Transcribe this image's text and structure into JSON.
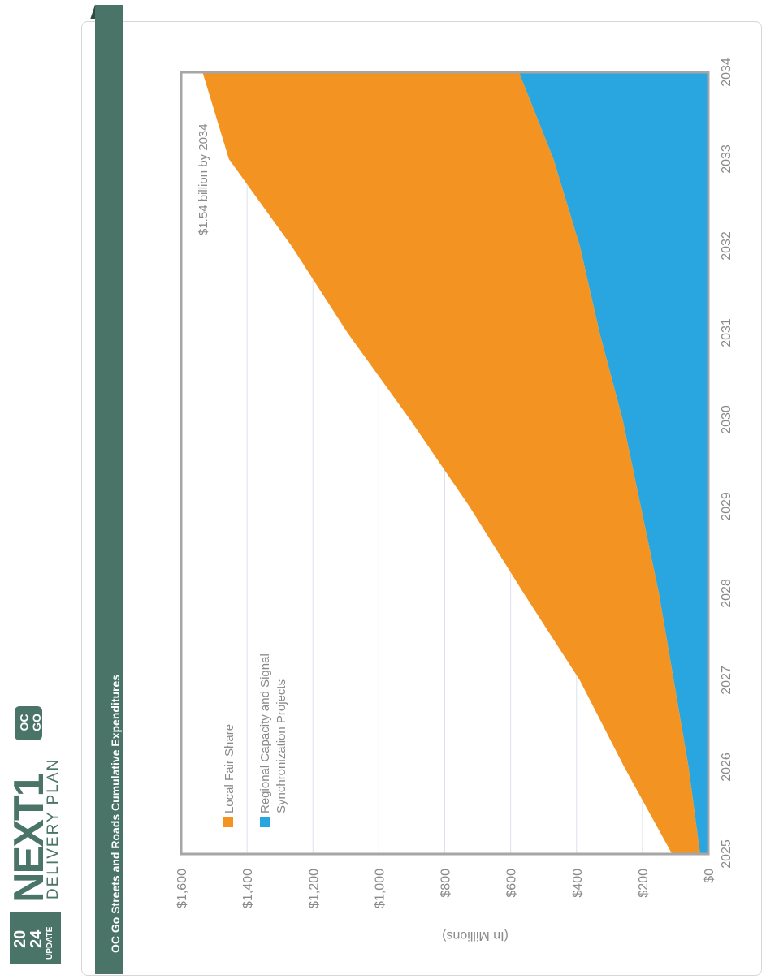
{
  "header": {
    "title": "OC Go Streets and Roads Cumulative Expenditures",
    "logo": {
      "year_top": "20",
      "year_bottom": "24",
      "update": "UPDATE",
      "brand": "NEXT1",
      "sub": "DELIVERY PLAN",
      "oc": "OC",
      "go": "GO"
    }
  },
  "colors": {
    "accent": "#4a7468",
    "local": "#f39322",
    "regional": "#29a6df",
    "axis": "#a6a6a6",
    "grid": "#dde0ee",
    "text": "#8a8a8a"
  },
  "chart_data": {
    "type": "area",
    "stacked": true,
    "title": "OC Go Streets and Roads Cumulative Expenditures",
    "ylabel": "(In Millions)",
    "xlabel": "",
    "x": [
      "2025",
      "2026",
      "2027",
      "2028",
      "2029",
      "2030",
      "2031",
      "2032",
      "2033",
      "2034"
    ],
    "ylim": [
      0,
      1600
    ],
    "yticks": [
      "$0",
      "$200",
      "$400",
      "$600",
      "$800",
      "$1,000",
      "$1,200",
      "$1,400",
      "$1,600"
    ],
    "series": [
      {
        "name": "Regional Capacity and Signal Synchronization Projects",
        "color": "#29a6df",
        "values": [
          25,
          60,
          105,
          150,
          205,
          260,
          330,
          390,
          470,
          575
        ]
      },
      {
        "name": "Local Fair Share",
        "color": "#f39322",
        "values": [
          85,
          195,
          285,
          410,
          520,
          645,
          765,
          875,
          985,
          960
        ]
      }
    ],
    "annotation": "$1.54  billion by 2034",
    "legend": [
      "Local Fair Share",
      "Regional Capacity and Signal Synchronization Projects"
    ],
    "legend_position": "top-left",
    "grid": true,
    "orientation": "rotated 90° counter-clockwise"
  }
}
